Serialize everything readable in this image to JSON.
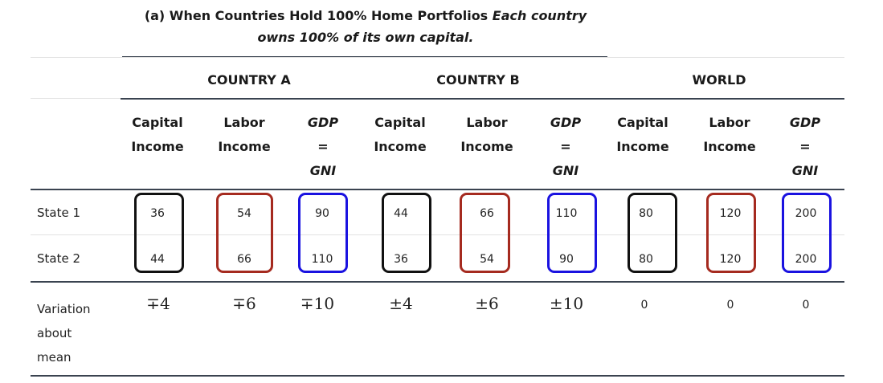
{
  "caption": {
    "bold": "(a) When Countries Hold 100% Home Portfolios",
    "italic_1": "Each country",
    "italic_2": "owns 100% of its own capital."
  },
  "groups": [
    "COUNTRY A",
    "COUNTRY B",
    "WORLD"
  ],
  "columns": [
    {
      "line1": "Capital",
      "line2": "Income",
      "line3": ""
    },
    {
      "line1": "Labor",
      "line2": "Income",
      "line3": ""
    },
    {
      "line1": "GDP",
      "line2": "=",
      "line3": "GNI"
    },
    {
      "line1": "Capital",
      "line2": "Income",
      "line3": ""
    },
    {
      "line1": "Labor",
      "line2": "Income",
      "line3": ""
    },
    {
      "line1": "GDP",
      "line2": "=",
      "line3": "GNI"
    },
    {
      "line1": "Capital",
      "line2": "Income",
      "line3": ""
    },
    {
      "line1": "Labor",
      "line2": "Income",
      "line3": ""
    },
    {
      "line1": "GDP",
      "line2": "=",
      "line3": "GNI"
    }
  ],
  "rows": [
    {
      "label": "State 1",
      "values": [
        "36",
        "54",
        "90",
        "44",
        "66",
        "110",
        "80",
        "120",
        "200"
      ]
    },
    {
      "label": "State 2",
      "values": [
        "44",
        "66",
        "110",
        "36",
        "54",
        "90",
        "80",
        "120",
        "200"
      ]
    }
  ],
  "variation": {
    "label_1": "Variation",
    "label_2": "about",
    "label_3": "mean",
    "values": [
      "∓4",
      "∓6",
      "∓10",
      "±4",
      "±6",
      "±10",
      "0",
      "0",
      "0"
    ]
  },
  "colors": {
    "capital_box": "#111111",
    "labor_box": "#a52a1f",
    "gdp_box": "#1a12e0",
    "rule_dark": "#3a4350",
    "rule_light": "#e2e2e2"
  }
}
